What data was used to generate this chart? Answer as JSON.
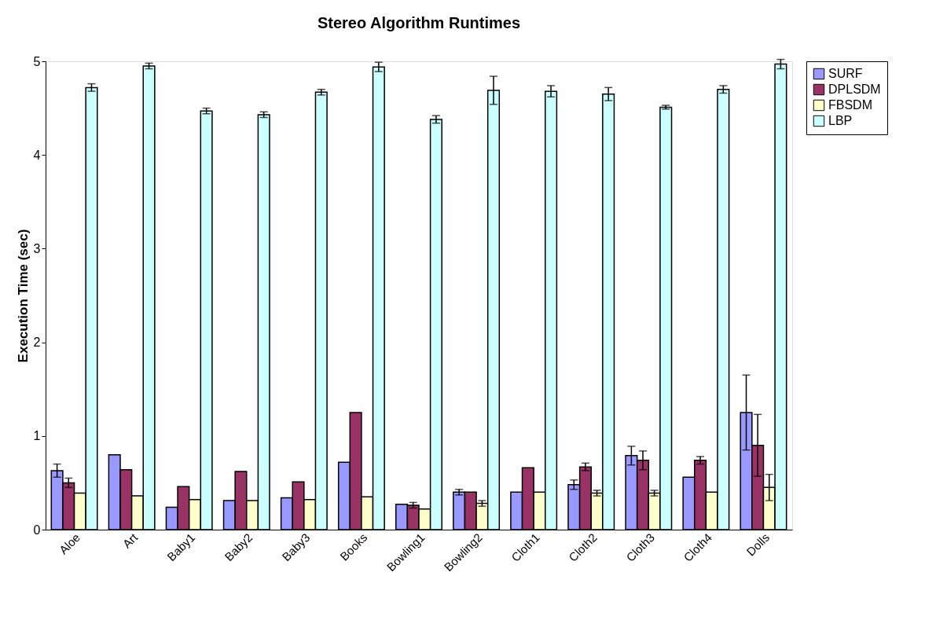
{
  "chart_data": {
    "type": "bar",
    "title": "Stereo Algorithm Runtimes",
    "ylabel": "Execution Time (sec)",
    "categories": [
      "Aloe",
      "Art",
      "Baby1",
      "Baby2",
      "Baby3",
      "Books",
      "Bowling1",
      "Bowling2",
      "Cloth1",
      "Cloth2",
      "Cloth3",
      "Cloth4",
      "Dolls"
    ],
    "series": [
      {
        "name": "SURF",
        "color": "#9999ff",
        "values": [
          0.63,
          0.8,
          0.24,
          0.31,
          0.34,
          0.72,
          0.27,
          0.4,
          0.4,
          0.48,
          0.79,
          0.56,
          1.25
        ],
        "errors": [
          0.07,
          null,
          null,
          null,
          null,
          null,
          null,
          0.03,
          null,
          0.05,
          0.1,
          null,
          0.4
        ]
      },
      {
        "name": "DPLSDM",
        "color": "#993366",
        "values": [
          0.5,
          0.64,
          0.46,
          0.62,
          0.51,
          1.25,
          0.26,
          0.4,
          0.66,
          0.67,
          0.74,
          0.74,
          0.9
        ],
        "errors": [
          0.05,
          null,
          null,
          null,
          null,
          null,
          0.03,
          null,
          null,
          0.04,
          0.1,
          0.04,
          0.33
        ]
      },
      {
        "name": "FBSDM",
        "color": "#ffffcc",
        "values": [
          0.39,
          0.36,
          0.32,
          0.31,
          0.32,
          0.35,
          0.22,
          0.28,
          0.4,
          0.39,
          0.39,
          0.4,
          0.45
        ],
        "errors": [
          null,
          null,
          null,
          null,
          null,
          null,
          null,
          0.03,
          null,
          0.03,
          0.03,
          null,
          0.14
        ]
      },
      {
        "name": "LBP",
        "color": "#ccffff",
        "values": [
          4.72,
          4.95,
          4.47,
          4.43,
          4.67,
          4.94,
          4.38,
          4.69,
          4.68,
          4.65,
          4.51,
          4.7,
          4.97
        ],
        "errors": [
          0.04,
          0.03,
          0.03,
          0.03,
          0.03,
          0.05,
          0.04,
          0.15,
          0.06,
          0.07,
          0.02,
          0.04,
          0.05
        ]
      }
    ],
    "ylim": [
      0,
      5
    ],
    "yticks": [
      0,
      1,
      2,
      3,
      4,
      5
    ],
    "grid": false,
    "legend": "right"
  }
}
